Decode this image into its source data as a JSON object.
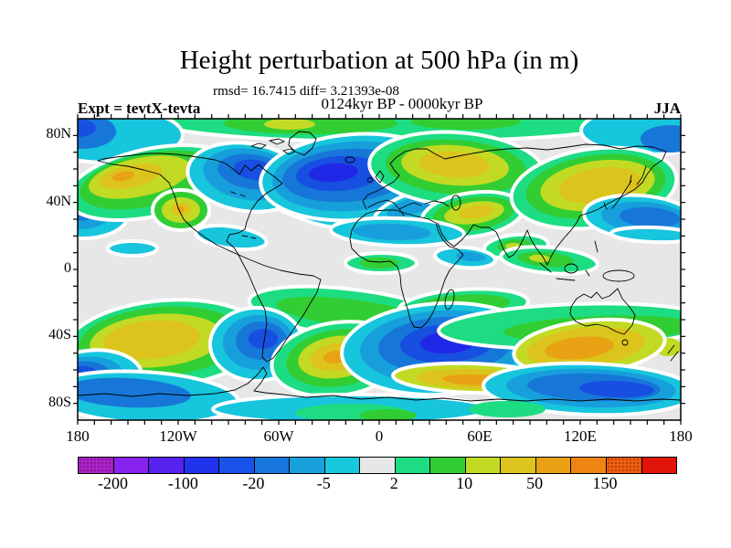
{
  "chart_data": {
    "type": "heatmap",
    "subtype": "filled-contour-world-map",
    "title": "Height perturbation at 500 hPa (in m)",
    "stats_line": "rmsd= 16.7415 diff= 3.21393e-08",
    "difference_line": "0124kyr BP - 0000kyr BP",
    "experiment": "Expt = tevtX-tevta",
    "season": "JJA",
    "x_axis": {
      "ticks": [
        {
          "label": "180",
          "lon": -180
        },
        {
          "label": "120W",
          "lon": -120
        },
        {
          "label": "60W",
          "lon": -60
        },
        {
          "label": "0",
          "lon": 0
        },
        {
          "label": "60E",
          "lon": 60
        },
        {
          "label": "120E",
          "lon": 120
        },
        {
          "label": "180",
          "lon": 180
        }
      ],
      "minor_step_deg": 10,
      "range": [
        -180,
        180
      ]
    },
    "y_axis": {
      "ticks": [
        {
          "label": "80N",
          "lat": 80
        },
        {
          "label": "40N",
          "lat": 40
        },
        {
          "label": "0",
          "lat": 0
        },
        {
          "label": "40S",
          "lat": -40
        },
        {
          "label": "80S",
          "lat": -80
        }
      ],
      "minor_step_deg": 10,
      "range": [
        -90,
        90
      ]
    },
    "colorbar": {
      "labels": [
        "-200",
        "-100",
        "-20",
        "-5",
        "2",
        "10",
        "50",
        "150"
      ],
      "levels": [
        -200,
        -150,
        -100,
        -50,
        -20,
        -10,
        -5,
        -2,
        2,
        5,
        10,
        20,
        50,
        100,
        150,
        200
      ],
      "colors": [
        "#aa22cc",
        "#8822ee",
        "#5522ee",
        "#2233ee",
        "#1852e8",
        "#1877dc",
        "#18a0dc",
        "#18c8dc",
        "#e7e7e7",
        "#1edc82",
        "#32cd32",
        "#c3da24",
        "#dcc41c",
        "#e8a214",
        "#ee8414",
        "#ee5f10",
        "#e01408"
      ],
      "stippled_indices": [
        0,
        15
      ]
    },
    "map_background": "#e7e7e7",
    "halo_color": "#ffffff",
    "palette": {
      "cy": "#17c5dc",
      "lb": "#179fdc",
      "bl": "#1777d8",
      "dp": "#174fe0",
      "d2": "#2028e8",
      "sp": "#1edc82",
      "gr": "#32cd32",
      "yg": "#c3da24",
      "gd": "#dcc41c",
      "am": "#e8a214"
    },
    "blobs": [
      [
        "sp",
        345,
        4,
        255,
        21,
        0,
        1
      ],
      [
        "gr",
        255,
        5,
        95,
        12,
        0,
        0
      ],
      [
        "yg",
        232,
        6,
        28,
        6,
        0,
        0
      ],
      [
        "gr",
        425,
        3,
        60,
        9,
        0,
        0
      ],
      [
        "cy",
        33,
        18,
        82,
        30,
        0,
        1
      ],
      [
        "bl",
        6,
        14,
        36,
        19,
        0,
        0
      ],
      [
        "dp",
        0,
        10,
        20,
        10,
        0,
        0
      ],
      [
        "cy",
        627,
        13,
        76,
        26,
        0,
        1
      ],
      [
        "bl",
        649,
        22,
        33,
        15,
        0,
        0
      ],
      [
        "cy",
        6,
        104,
        50,
        27,
        0,
        1
      ],
      [
        "lb",
        2,
        102,
        36,
        19,
        0,
        0
      ],
      [
        "bl",
        0,
        100,
        23,
        12,
        0,
        0
      ],
      [
        "sp",
        80,
        70,
        93,
        37,
        -12,
        1
      ],
      [
        "gr",
        76,
        67,
        75,
        29,
        -12,
        0
      ],
      [
        "yg",
        68,
        64,
        57,
        21,
        -12,
        0
      ],
      [
        "gd",
        58,
        63,
        35,
        12,
        -12,
        0
      ],
      [
        "am",
        50,
        63,
        12,
        5,
        -12,
        0
      ],
      [
        "gr",
        113,
        100,
        31,
        22,
        0,
        1
      ],
      [
        "yg",
        113,
        100,
        21,
        14,
        0,
        0
      ],
      [
        "gd",
        113,
        99,
        11,
        7,
        0,
        0
      ],
      [
        "am",
        113,
        99,
        4,
        3,
        0,
        0
      ],
      [
        "cy",
        243,
        95,
        56,
        13,
        22,
        1
      ],
      [
        "cy",
        168,
        130,
        39,
        12,
        8,
        1
      ],
      [
        "cy",
        185,
        64,
        65,
        37,
        8,
        1
      ],
      [
        "lb",
        188,
        61,
        51,
        28,
        8,
        0
      ],
      [
        "bl",
        191,
        58,
        38,
        19,
        8,
        0
      ],
      [
        "dp",
        194,
        56,
        23,
        11,
        8,
        0
      ],
      [
        "cy",
        303,
        64,
        103,
        47,
        -4,
        1
      ],
      [
        "lb",
        300,
        63,
        87,
        38,
        -4,
        0
      ],
      [
        "bl",
        295,
        62,
        71,
        29,
        -4,
        0
      ],
      [
        "dp",
        286,
        60,
        47,
        19,
        -4,
        0
      ],
      [
        "d2",
        280,
        59,
        27,
        10,
        -4,
        0
      ],
      [
        "cy",
        372,
        96,
        49,
        16,
        -18,
        1
      ],
      [
        "lb",
        368,
        95,
        31,
        9,
        -18,
        0
      ],
      [
        "sp",
        415,
        55,
        96,
        40,
        4,
        1
      ],
      [
        "gr",
        414,
        53,
        77,
        30,
        4,
        0
      ],
      [
        "yg",
        413,
        51,
        59,
        22,
        4,
        0
      ],
      [
        "gd",
        412,
        50,
        39,
        14,
        4,
        0
      ],
      [
        "sp",
        432,
        105,
        56,
        24,
        -8,
        1
      ],
      [
        "gr",
        433,
        104,
        45,
        18,
        -8,
        0
      ],
      [
        "yg",
        434,
        103,
        33,
        12,
        -8,
        0
      ],
      [
        "gd",
        436,
        102,
        19,
        7,
        -8,
        0
      ],
      [
        "sp",
        565,
        76,
        91,
        43,
        -8,
        1
      ],
      [
        "gr",
        567,
        74,
        77,
        34,
        -8,
        0
      ],
      [
        "yg",
        569,
        73,
        63,
        27,
        -8,
        0
      ],
      [
        "gd",
        572,
        73,
        46,
        19,
        -8,
        0
      ],
      [
        "cy",
        615,
        108,
        61,
        24,
        4,
        1
      ],
      [
        "lb",
        620,
        108,
        47,
        17,
        4,
        0
      ],
      [
        "bl",
        626,
        108,
        33,
        11,
        4,
        0
      ],
      [
        "cy",
        630,
        127,
        46,
        8,
        2,
        1
      ],
      [
        "cy",
        350,
        124,
        73,
        15,
        2,
        1
      ],
      [
        "lb",
        344,
        124,
        43,
        9,
        2,
        0
      ],
      [
        "sp",
        332,
        158,
        39,
        11,
        0,
        1
      ],
      [
        "gr",
        330,
        158,
        21,
        6,
        0,
        0
      ],
      [
        "sp",
        480,
        140,
        35,
        13,
        -5,
        1
      ],
      [
        "gr",
        478,
        139,
        19,
        7,
        -5,
        0
      ],
      [
        "yg",
        476,
        139,
        8,
        3,
        -5,
        0
      ],
      [
        "sp",
        516,
        155,
        53,
        14,
        5,
        1
      ],
      [
        "gr",
        512,
        154,
        31,
        8,
        5,
        0
      ],
      [
        "yg",
        506,
        153,
        12,
        4,
        5,
        0
      ],
      [
        "cy",
        424,
        152,
        33,
        11,
        5,
        1
      ],
      [
        "lb",
        430,
        151,
        16,
        5,
        5,
        0
      ],
      [
        "cy",
        60,
        142,
        27,
        8,
        0,
        1
      ],
      [
        "sp",
        300,
        213,
        113,
        26,
        7,
        1
      ],
      [
        "gr",
        300,
        213,
        83,
        15,
        7,
        0
      ],
      [
        "sp",
        422,
        205,
        71,
        18,
        -4,
        1
      ],
      [
        "gr",
        420,
        204,
        53,
        11,
        -4,
        0
      ],
      [
        "sp",
        95,
        246,
        109,
        47,
        -5,
        1
      ],
      [
        "gr",
        91,
        244,
        91,
        38,
        -5,
        0
      ],
      [
        "yg",
        86,
        243,
        73,
        29,
        -5,
        0
      ],
      [
        "gd",
        81,
        242,
        53,
        21,
        -5,
        0
      ],
      [
        "cy",
        196,
        247,
        51,
        40,
        0,
        1
      ],
      [
        "lb",
        198,
        245,
        39,
        30,
        0,
        0
      ],
      [
        "bl",
        201,
        243,
        28,
        21,
        0,
        0
      ],
      [
        "dp",
        203,
        241,
        16,
        11,
        0,
        0
      ],
      [
        "cy",
        12,
        288,
        59,
        34,
        -8,
        1
      ],
      [
        "lb",
        6,
        286,
        45,
        25,
        -8,
        0
      ],
      [
        "bl",
        2,
        284,
        34,
        18,
        -8,
        0
      ],
      [
        "dp",
        0,
        282,
        22,
        11,
        -8,
        0
      ],
      [
        "sp",
        285,
        263,
        73,
        40,
        -8,
        1
      ],
      [
        "gr",
        285,
        262,
        57,
        31,
        -8,
        0
      ],
      [
        "yg",
        284,
        261,
        43,
        23,
        -8,
        0
      ],
      [
        "gd",
        283,
        261,
        29,
        15,
        -8,
        0
      ],
      [
        "am",
        282,
        261,
        13,
        7,
        -8,
        0
      ],
      [
        "cy",
        398,
        252,
        109,
        50,
        -3,
        1
      ],
      [
        "lb",
        400,
        250,
        91,
        40,
        -3,
        0
      ],
      [
        "bl",
        402,
        248,
        73,
        31,
        -3,
        0
      ],
      [
        "dp",
        404,
        246,
        51,
        21,
        -3,
        0
      ],
      [
        "d2",
        405,
        245,
        30,
        12,
        -3,
        0
      ],
      [
        "sp",
        545,
        227,
        150,
        24,
        -2,
        1
      ],
      [
        "gr",
        572,
        230,
        106,
        14,
        -2,
        0
      ],
      [
        "yg",
        646,
        250,
        15,
        10,
        0,
        0
      ],
      [
        "yg",
        560,
        250,
        83,
        29,
        -6,
        1
      ],
      [
        "gd",
        556,
        250,
        65,
        21,
        -6,
        0
      ],
      [
        "am",
        549,
        251,
        38,
        12,
        -6,
        0
      ],
      [
        "yg",
        432,
        284,
        87,
        16,
        2,
        1
      ],
      [
        "gd",
        434,
        285,
        63,
        11,
        2,
        0
      ],
      [
        "am",
        436,
        286,
        37,
        6,
        2,
        0
      ],
      [
        "cy",
        560,
        296,
        116,
        28,
        2,
        1
      ],
      [
        "lb",
        562,
        295,
        93,
        21,
        2,
        0
      ],
      [
        "bl",
        565,
        294,
        73,
        15,
        2,
        0
      ],
      [
        "dp",
        590,
        296,
        41,
        9,
        2,
        0
      ],
      [
        "cy",
        70,
        305,
        106,
        28,
        3,
        1
      ],
      [
        "bl",
        55,
        300,
        69,
        16,
        3,
        0
      ],
      [
        "cy",
        300,
        318,
        152,
        16,
        0,
        1
      ],
      [
        "sp",
        300,
        322,
        62,
        10,
        0,
        0
      ],
      [
        "gr",
        340,
        325,
        31,
        7,
        0,
        0
      ],
      [
        "sp",
        470,
        318,
        42,
        9,
        0,
        0
      ]
    ]
  }
}
